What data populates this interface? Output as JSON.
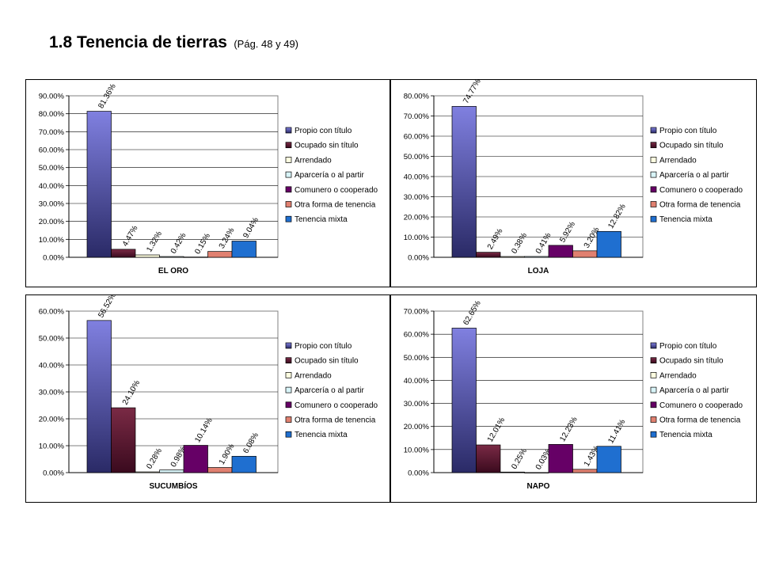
{
  "page": {
    "title": "1.8 Tenencia de tierras",
    "subtitle": "(Pág. 48 y 49)"
  },
  "legend_labels": [
    "Propio con título",
    "Ocupado sin título",
    "Arrendado",
    "Aparcería o al partir",
    "Comunero o cooperado",
    "Otra forma de tenencia",
    "Tenencia mixta"
  ],
  "colors": {
    "propio": "#8080e0",
    "ocupado": "#7a2a45",
    "arrendado": "#ffffe0",
    "aparceria": "#d8f4f8",
    "comunero": "#660066",
    "otra": "#e08070",
    "mixta": "#1f6fd0"
  },
  "chart_data": [
    {
      "type": "bar",
      "xlabel": "EL ORO",
      "ylim": [
        0,
        90
      ],
      "yticks": [
        "0.00%",
        "10.00%",
        "20.00%",
        "30.00%",
        "40.00%",
        "50.00%",
        "60.00%",
        "70.00%",
        "80.00%",
        "90.00%"
      ],
      "legend_position": "right",
      "grid": true,
      "values": [
        81.36,
        4.47,
        1.32,
        0.42,
        0.15,
        3.24,
        9.04
      ],
      "labels": [
        "81.36%",
        "4.47%",
        "1.32%",
        "0.42%",
        "0.15%",
        "3.24%",
        "9.04%"
      ]
    },
    {
      "type": "bar",
      "xlabel": "LOJA",
      "ylim": [
        0,
        80
      ],
      "yticks": [
        "0.00%",
        "10.00%",
        "20.00%",
        "30.00%",
        "40.00%",
        "50.00%",
        "60.00%",
        "70.00%",
        "80.00%"
      ],
      "legend_position": "right",
      "grid": true,
      "values": [
        74.77,
        2.49,
        0.38,
        0.41,
        5.92,
        3.2,
        12.82
      ],
      "labels": [
        "74.77%",
        "2.49%",
        "0.38%",
        "0.41%",
        "5.92%",
        "3.20%",
        "12.82%"
      ]
    },
    {
      "type": "bar",
      "xlabel": "SUCUMBÍOS",
      "ylim": [
        0,
        60
      ],
      "yticks": [
        "0.00%",
        "10.00%",
        "20.00%",
        "30.00%",
        "40.00%",
        "50.00%",
        "60.00%"
      ],
      "legend_position": "right",
      "grid": true,
      "values": [
        56.52,
        24.1,
        0.28,
        0.98,
        10.14,
        1.9,
        6.08
      ],
      "labels": [
        "56.52%",
        "24.10%",
        "0.28%",
        "0.98%",
        "10.14%",
        "1.90%",
        "6.08%"
      ]
    },
    {
      "type": "bar",
      "xlabel": "NAPO",
      "ylim": [
        0,
        70
      ],
      "yticks": [
        "0.00%",
        "10.00%",
        "20.00%",
        "30.00%",
        "40.00%",
        "50.00%",
        "60.00%",
        "70.00%"
      ],
      "legend_position": "right",
      "grid": true,
      "values": [
        62.65,
        12.01,
        0.25,
        0.03,
        12.23,
        1.43,
        11.41
      ],
      "labels": [
        "62.65%",
        "12.01%",
        "0.25%",
        "0.03%",
        "12.23%",
        "1.43%",
        "11.41%"
      ]
    }
  ]
}
